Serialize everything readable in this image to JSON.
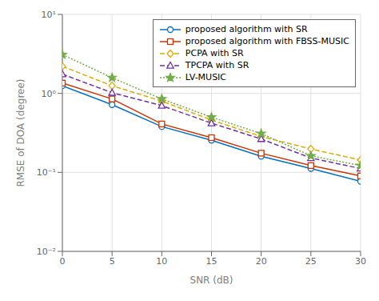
{
  "chart_data": {
    "type": "line",
    "log": "y",
    "grid": true,
    "legend": "upper right",
    "xlabel": "SNR (dB)",
    "ylabel": "RMSE of DOA (degree)",
    "x": [
      0,
      5,
      10,
      15,
      20,
      25,
      30
    ],
    "xlim": [
      0,
      30
    ],
    "xticks": [
      0,
      5,
      10,
      15,
      20,
      25,
      30
    ],
    "ylim": [
      0.01,
      10
    ],
    "yticks": [
      {
        "value": 0.01,
        "label": "10⁻²"
      },
      {
        "value": 0.1,
        "label": "10⁻¹"
      },
      {
        "value": 1,
        "label": "10⁰"
      },
      {
        "value": 10,
        "label": "10¹"
      }
    ],
    "series": [
      {
        "name": "proposed algorithm with SR",
        "color": "#0070c0",
        "marker": "circle",
        "line_style": "solid",
        "values": [
          1.25,
          0.72,
          0.38,
          0.255,
          0.16,
          0.112,
          0.077
        ]
      },
      {
        "name": "proposed algorithm with FBSS-MUSIC",
        "color": "#cc3300",
        "marker": "square",
        "line_style": "solid",
        "values": [
          1.35,
          0.85,
          0.41,
          0.275,
          0.175,
          0.122,
          0.09
        ]
      },
      {
        "name": "PCPA with SR",
        "color": "#ddaa00",
        "marker": "diamond",
        "line_style": "dashed",
        "values": [
          2.2,
          1.25,
          0.8,
          0.46,
          0.285,
          0.198,
          0.143
        ]
      },
      {
        "name": "TPCPA with SR",
        "color": "#7030a0",
        "marker": "triangle",
        "line_style": "dashed",
        "values": [
          1.75,
          1.02,
          0.7,
          0.42,
          0.265,
          0.152,
          0.112
        ]
      },
      {
        "name": "LV-MUSIC",
        "color": "#70ad47",
        "marker": "star",
        "line_style": "dotted",
        "values": [
          3.1,
          1.58,
          0.85,
          0.5,
          0.31,
          0.162,
          0.122
        ]
      }
    ]
  }
}
